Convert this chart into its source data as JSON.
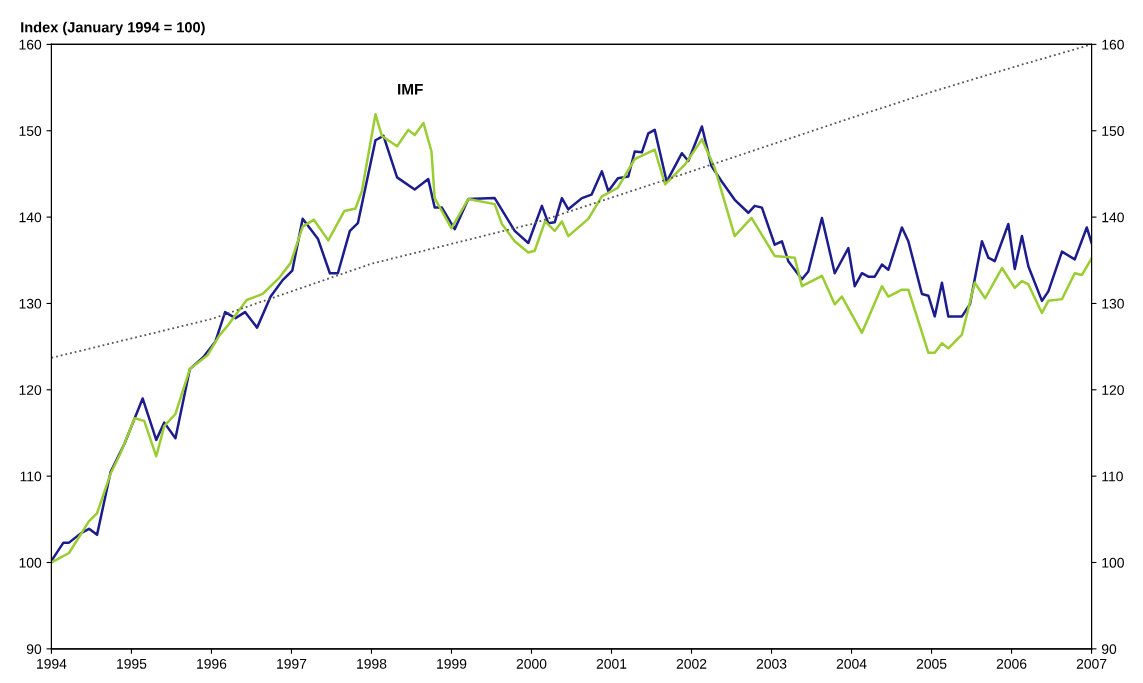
{
  "chart_data": {
    "type": "line",
    "ylabel": "Index (January 1994 = 100)",
    "xlim": [
      1994,
      2007
    ],
    "xticks": [
      1994,
      1995,
      1996,
      1997,
      1998,
      1999,
      2000,
      2001,
      2002,
      2003,
      2004,
      2005,
      2006,
      2007
    ],
    "ylim": [
      90,
      160
    ],
    "yticks": [
      90,
      100,
      110,
      120,
      130,
      140,
      150,
      160
    ],
    "y2lim": [
      90,
      160
    ],
    "y2ticks": [
      90,
      100,
      110,
      120,
      130,
      140,
      150,
      160
    ],
    "grid": false,
    "legend": false,
    "marker": "none",
    "series": [
      {
        "color": "#1c1c8c",
        "line_style": "solid",
        "x": [
          1994.0,
          1994.15,
          1994.22,
          1994.37,
          1994.47,
          1994.57,
          1994.74,
          1994.91,
          1995.14,
          1995.31,
          1995.41,
          1995.55,
          1995.73,
          1995.9,
          1996.05,
          1996.17,
          1996.3,
          1996.42,
          1996.57,
          1996.74,
          1996.89,
          1997.01,
          1997.14,
          1997.33,
          1997.48,
          1997.58,
          1997.73,
          1997.83,
          1998.05,
          1998.15,
          1998.32,
          1998.54,
          1998.71,
          1998.79,
          1998.88,
          1999.04,
          1999.21,
          1999.54,
          1999.79,
          1999.96,
          2000.13,
          2000.21,
          2000.29,
          2000.38,
          2000.46,
          2000.63,
          2000.75,
          2000.88,
          2000.96,
          2001.08,
          2001.21,
          2001.29,
          2001.38,
          2001.46,
          2001.54,
          2001.69,
          2001.88,
          2001.96,
          2002.13,
          2002.25,
          2002.38,
          2002.54,
          2002.71,
          2002.79,
          2002.88,
          2003.04,
          2003.13,
          2003.21,
          2003.38,
          2003.46,
          2003.63,
          2003.79,
          2003.96,
          2004.04,
          2004.13,
          2004.21,
          2004.29,
          2004.38,
          2004.46,
          2004.63,
          2004.71,
          2004.88,
          2004.96,
          2005.04,
          2005.13,
          2005.21,
          2005.38,
          2005.48,
          2005.63,
          2005.71,
          2005.79,
          2005.96,
          2006.04,
          2006.13,
          2006.21,
          2006.38,
          2006.46,
          2006.63,
          2006.79,
          2006.94,
          2007.0
        ],
        "values": [
          100.2,
          102.3,
          102.3,
          103.4,
          103.9,
          103.2,
          110.5,
          113.7,
          119.0,
          114.2,
          116.2,
          114.4,
          122.4,
          123.8,
          125.6,
          129.0,
          128.3,
          129.0,
          127.2,
          130.8,
          132.7,
          133.8,
          139.8,
          137.5,
          133.5,
          133.5,
          138.4,
          139.3,
          148.9,
          149.4,
          144.6,
          143.2,
          144.4,
          141.1,
          141.1,
          138.6,
          142.1,
          142.2,
          138.4,
          137.0,
          141.3,
          139.3,
          139.4,
          142.2,
          140.9,
          142.2,
          142.6,
          145.3,
          143.0,
          144.5,
          144.7,
          147.6,
          147.5,
          149.7,
          150.1,
          144.1,
          147.4,
          146.5,
          150.5,
          145.9,
          144.1,
          142.0,
          140.5,
          141.3,
          141.1,
          136.8,
          137.2,
          134.9,
          132.8,
          133.7,
          139.9,
          133.5,
          136.4,
          132.0,
          133.5,
          133.1,
          133.1,
          134.5,
          133.9,
          138.8,
          137.2,
          131.1,
          130.9,
          128.5,
          132.4,
          128.5,
          128.5,
          129.9,
          137.2,
          135.3,
          134.9,
          139.2,
          134.0,
          137.8,
          134.3,
          130.3,
          131.4,
          136.0,
          135.1,
          138.8,
          137.0
        ]
      },
      {
        "name": "IMF",
        "color": "#9acd32",
        "line_style": "solid",
        "x": [
          1994.0,
          1994.22,
          1994.47,
          1994.57,
          1994.74,
          1994.86,
          1995.04,
          1995.16,
          1995.31,
          1995.41,
          1995.55,
          1995.73,
          1995.95,
          1996.1,
          1996.2,
          1996.44,
          1996.64,
          1996.84,
          1996.99,
          1997.14,
          1997.28,
          1997.46,
          1997.66,
          1997.8,
          1997.88,
          1998.05,
          1998.13,
          1998.32,
          1998.46,
          1998.54,
          1998.65,
          1998.75,
          1998.79,
          1999.0,
          1999.21,
          1999.54,
          1999.63,
          1999.79,
          1999.96,
          2000.04,
          2000.17,
          2000.29,
          2000.38,
          2000.46,
          2000.71,
          2000.88,
          2001.08,
          2001.29,
          2001.54,
          2001.67,
          2001.92,
          2002.13,
          2002.29,
          2002.54,
          2002.75,
          2003.04,
          2003.29,
          2003.38,
          2003.63,
          2003.79,
          2003.88,
          2004.13,
          2004.38,
          2004.46,
          2004.63,
          2004.71,
          2004.96,
          2005.04,
          2005.13,
          2005.21,
          2005.38,
          2005.54,
          2005.67,
          2005.88,
          2006.04,
          2006.13,
          2006.21,
          2006.38,
          2006.46,
          2006.63,
          2006.79,
          2006.88,
          2007.0
        ],
        "values": [
          100.0,
          101.1,
          104.8,
          105.7,
          110.3,
          112.6,
          116.7,
          116.4,
          112.3,
          115.8,
          117.2,
          122.4,
          124.0,
          126.3,
          127.4,
          130.4,
          131.1,
          132.9,
          134.7,
          138.9,
          139.7,
          137.3,
          140.7,
          141.0,
          143.0,
          151.9,
          149.4,
          148.2,
          150.1,
          149.5,
          150.9,
          147.6,
          142.2,
          138.7,
          142.1,
          141.5,
          139.2,
          137.2,
          135.9,
          136.1,
          139.5,
          138.4,
          139.5,
          137.8,
          139.8,
          142.4,
          143.4,
          146.7,
          147.8,
          143.8,
          146.1,
          149.0,
          145.7,
          137.8,
          139.9,
          135.5,
          135.3,
          132.0,
          133.2,
          129.9,
          130.8,
          126.6,
          132.0,
          130.8,
          131.6,
          131.6,
          124.3,
          124.3,
          125.4,
          124.8,
          126.4,
          132.4,
          130.6,
          134.1,
          131.8,
          132.6,
          132.2,
          128.9,
          130.3,
          130.5,
          133.5,
          133.3,
          135.2
        ]
      },
      {
        "color": "#555555",
        "line_style": "dotted",
        "x": [
          1994,
          1996,
          1998,
          2000,
          2002,
          2004,
          2005,
          2006,
          2007
        ],
        "values": [
          123.7,
          128.2,
          134.6,
          139.2,
          145.3,
          151.5,
          154.5,
          157.3,
          160.0
        ]
      }
    ]
  }
}
